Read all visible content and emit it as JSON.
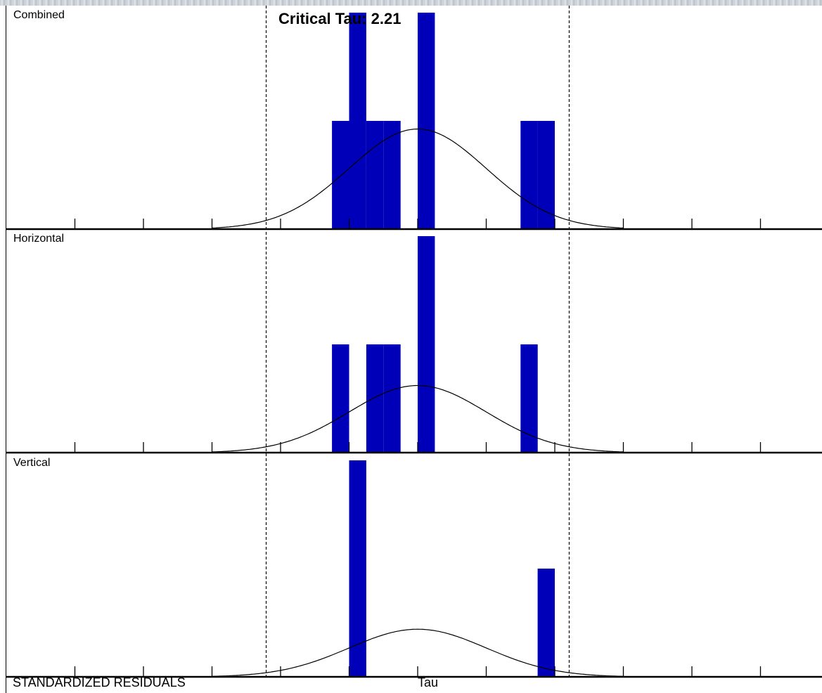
{
  "critical": {
    "label": "Critical Tau:",
    "value": "2.21"
  },
  "footer": {
    "left_label": "STANDARDIZED RESIDUALS",
    "axis_label": "Tau"
  },
  "colors": {
    "bar": "#0000b8",
    "curve": "#000000",
    "axis": "#000000",
    "background": "#ffffff"
  },
  "chart_data": [
    {
      "type": "bar",
      "title": "Combined",
      "critical_tau": 2.21,
      "x_range": [
        -5,
        5
      ],
      "ylim": [
        0,
        4
      ],
      "bin_width": 0.25,
      "bins": [
        {
          "x": -1.125,
          "count": 2
        },
        {
          "x": -0.875,
          "count": 4
        },
        {
          "x": -0.625,
          "count": 2
        },
        {
          "x": -0.375,
          "count": 2
        },
        {
          "x": 0.125,
          "count": 4
        },
        {
          "x": 1.625,
          "count": 2
        },
        {
          "x": 1.875,
          "count": 2
        }
      ],
      "curve": "normal",
      "curve_peak": 1.85
    },
    {
      "type": "bar",
      "title": "Horizontal",
      "critical_tau": 2.21,
      "x_range": [
        -5,
        5
      ],
      "ylim": [
        0,
        2
      ],
      "bin_width": 0.25,
      "bins": [
        {
          "x": -1.125,
          "count": 1
        },
        {
          "x": -0.625,
          "count": 1
        },
        {
          "x": -0.375,
          "count": 1
        },
        {
          "x": 0.125,
          "count": 2
        },
        {
          "x": 1.625,
          "count": 1
        }
      ],
      "curve": "normal",
      "curve_peak": 0.62
    },
    {
      "type": "bar",
      "title": "Vertical",
      "critical_tau": 2.21,
      "x_range": [
        -5,
        5
      ],
      "ylim": [
        0,
        2
      ],
      "bin_width": 0.25,
      "bins": [
        {
          "x": -0.875,
          "count": 2
        },
        {
          "x": 1.875,
          "count": 1
        }
      ],
      "curve": "normal",
      "curve_peak": 0.44
    }
  ]
}
